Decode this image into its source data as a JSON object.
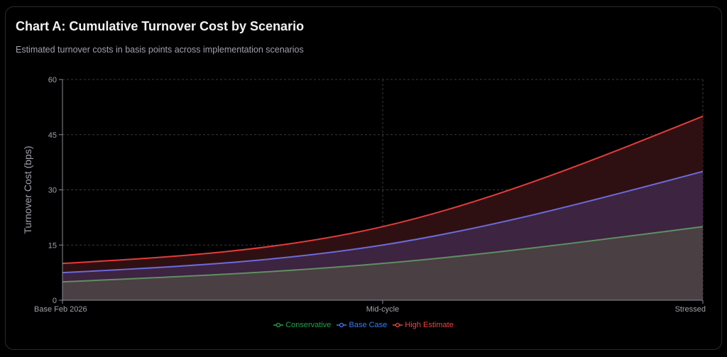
{
  "header": {
    "title": "Chart A: Cumulative Turnover Cost by Scenario",
    "subtitle": "Estimated turnover costs in basis points across implementation scenarios"
  },
  "chart_data": {
    "type": "area",
    "title": "Chart A: Cumulative Turnover Cost by Scenario",
    "xlabel": "",
    "ylabel": "Turnover Cost (bps)",
    "categories": [
      "Base Feb 2026",
      "Mid-cycle",
      "Stressed"
    ],
    "ylim": [
      0,
      60
    ],
    "yticks": [
      0,
      15,
      30,
      45,
      60
    ],
    "grid": true,
    "legend": "bottom",
    "series": [
      {
        "name": "Conservative",
        "values": [
          5,
          10,
          20
        ],
        "line": "#5f8f62",
        "fill": "#4a3f42",
        "legend_color": "#22a34a"
      },
      {
        "name": "Base Case",
        "values": [
          7.5,
          15,
          35
        ],
        "line": "#6b6bdc",
        "fill": "#3d2440",
        "legend_color": "#3b7ef0"
      },
      {
        "name": "High Estimate",
        "values": [
          10,
          20,
          50
        ],
        "line": "#e23c3c",
        "fill": "#2f1012",
        "legend_color": "#ef4444"
      }
    ]
  }
}
